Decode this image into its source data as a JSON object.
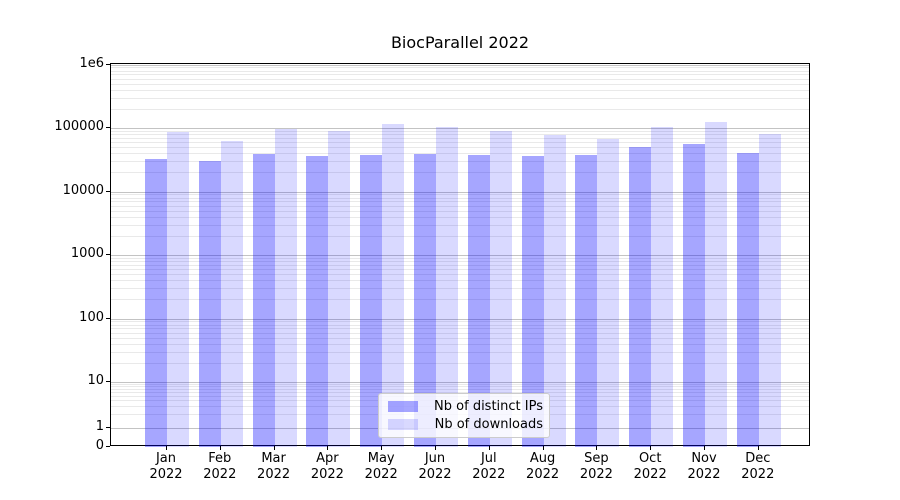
{
  "title": "BiocParallel 2022",
  "legend": {
    "items": [
      {
        "label": "Nb of distinct IPs",
        "color": "rgba(0,0,255,0.35)"
      },
      {
        "label": "Nb of downloads",
        "color": "rgba(0,0,255,0.15)"
      }
    ]
  },
  "chart_data": {
    "type": "bar",
    "title": "BiocParallel 2022",
    "categories": [
      "Jan 2022",
      "Feb 2022",
      "Mar 2022",
      "Apr 2022",
      "May 2022",
      "Jun 2022",
      "Jul 2022",
      "Aug 2022",
      "Sep 2022",
      "Oct 2022",
      "Nov 2022",
      "Dec 2022"
    ],
    "series": [
      {
        "name": "Nb of distinct IPs",
        "color": "rgba(0,0,255,0.35)",
        "values": [
          32000,
          30000,
          39000,
          36000,
          37500,
          39500,
          37000,
          36000,
          37000,
          50000,
          55000,
          40000
        ]
      },
      {
        "name": "Nb of downloads",
        "color": "rgba(0,0,255,0.15)",
        "values": [
          87000,
          63000,
          98000,
          89000,
          117000,
          104000,
          89000,
          79000,
          66000,
          105000,
          124000,
          80000
        ]
      }
    ],
    "xlabel": "",
    "ylabel": "",
    "yscale": "symlog",
    "ylim": [
      0,
      1000000
    ],
    "y_ticks": [
      0,
      1,
      10,
      100,
      1000,
      10000,
      100000,
      1000000
    ],
    "y_tick_labels": [
      "0",
      "1",
      "10",
      "100",
      "1000",
      "10000",
      "100000",
      "1e6"
    ],
    "grid": "major-and-minor-horizontal",
    "legend_position": "lower center"
  }
}
